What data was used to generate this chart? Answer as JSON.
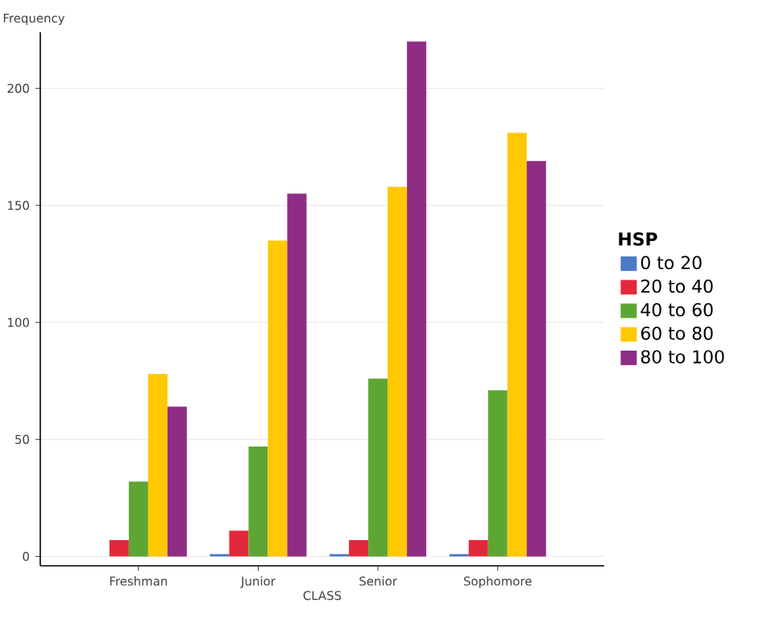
{
  "chart_data": {
    "type": "bar",
    "xlabel": "CLASS",
    "ylabel": "Frequency",
    "legend_title": "HSP",
    "categories": [
      "Freshman",
      "Junior",
      "Senior",
      "Sophomore"
    ],
    "series": [
      {
        "name": "0 to 20",
        "color": "#4a7bc4",
        "values": [
          0,
          1,
          1,
          1
        ]
      },
      {
        "name": "20 to 40",
        "color": "#e3283a",
        "values": [
          7,
          11,
          7,
          7
        ]
      },
      {
        "name": "40 to 60",
        "color": "#5ea634",
        "values": [
          32,
          47,
          76,
          71
        ]
      },
      {
        "name": "60 to 80",
        "color": "#ffc800",
        "values": [
          78,
          135,
          158,
          181
        ]
      },
      {
        "name": "80 to 100",
        "color": "#8f2d84",
        "values": [
          64,
          155,
          220,
          169
        ]
      }
    ],
    "ylim": [
      -4,
      224
    ],
    "yticks": [
      0,
      50,
      100,
      150,
      200
    ],
    "grid": "y",
    "legend": "right"
  }
}
